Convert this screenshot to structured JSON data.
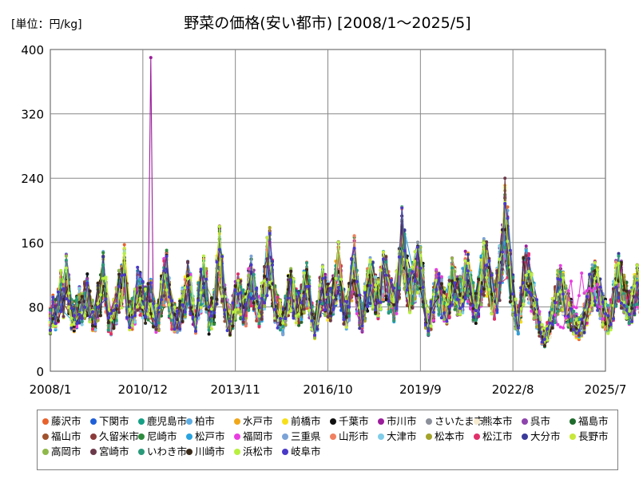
{
  "chart_data": {
    "type": "line",
    "title": "野菜の価格(安い都市) [2008/1～2025/5]",
    "unit_label": "[単位：円/kg]",
    "xlabel": "",
    "ylabel": "",
    "x_range": [
      2008.0,
      2025.5
    ],
    "ylim": [
      0,
      400
    ],
    "y_ticks": [
      0,
      80,
      160,
      240,
      320,
      400
    ],
    "x_ticks": [
      {
        "value": 2008.0,
        "label": "2008/1"
      },
      {
        "value": 2010.917,
        "label": "2010/12"
      },
      {
        "value": 2013.833,
        "label": "2013/11"
      },
      {
        "value": 2016.75,
        "label": "2016/10"
      },
      {
        "value": 2019.667,
        "label": "2019/9"
      },
      {
        "value": 2022.583,
        "label": "2022/8"
      },
      {
        "value": 2025.5,
        "label": "2025/7"
      }
    ],
    "grid": true,
    "legend_position": "bottom",
    "series": [
      {
        "name": "藤沢市",
        "color": "#e8622c"
      },
      {
        "name": "下関市",
        "color": "#1f5fd8"
      },
      {
        "name": "鹿児島市",
        "color": "#16a085"
      },
      {
        "name": "柏市",
        "color": "#5dade2"
      },
      {
        "name": "水戸市",
        "color": "#f0a81a"
      },
      {
        "name": "前橋市",
        "color": "#f7e01a"
      },
      {
        "name": "千葉市",
        "color": "#111111"
      },
      {
        "name": "市川市",
        "color": "#9b1d9b"
      },
      {
        "name": "さいたま市",
        "color": "#8a8f99"
      },
      {
        "name": "熊本市",
        "color": "#f7ecd0"
      },
      {
        "name": "呉市",
        "color": "#8e44ad"
      },
      {
        "name": "福島市",
        "color": "#1e6b2c"
      },
      {
        "name": "福山市",
        "color": "#a0522d"
      },
      {
        "name": "久留米市",
        "color": "#8b3a3a"
      },
      {
        "name": "尼崎市",
        "color": "#2e8b3e"
      },
      {
        "name": "松戸市",
        "color": "#29a3e0"
      },
      {
        "name": "福岡市",
        "color": "#e83ee0"
      },
      {
        "name": "三重県",
        "color": "#7ba3d6"
      },
      {
        "name": "山形市",
        "color": "#f08060"
      },
      {
        "name": "大津市",
        "color": "#7fcde8"
      },
      {
        "name": "松本市",
        "color": "#a3a32a"
      },
      {
        "name": "松江市",
        "color": "#e0306a"
      },
      {
        "name": "大分市",
        "color": "#3a3a9a"
      },
      {
        "name": "長野市",
        "color": "#c8e83a"
      },
      {
        "name": "高岡市",
        "color": "#8fb84a"
      },
      {
        "name": "宮崎市",
        "color": "#6b3a4a"
      },
      {
        "name": "いわき市",
        "color": "#2a9a7a"
      },
      {
        "name": "川崎市",
        "color": "#3a2a1a"
      },
      {
        "name": "浜松市",
        "color": "#b8f040"
      },
      {
        "name": "岐阜市",
        "color": "#4a3ac8"
      }
    ],
    "envelope_monthly": {
      "start": [
        2008,
        1
      ],
      "base": [
        62,
        74,
        70,
        84,
        98,
        92,
        114,
        96,
        72,
        68,
        74,
        82,
        78,
        88,
        96,
        84,
        70,
        64,
        86,
        94,
        118,
        92,
        66,
        60,
        70,
        82,
        100,
        108,
        126,
        90,
        68,
        72,
        80,
        102,
        96,
        88,
        82,
        86,
        90,
        76,
        66,
        70,
        94,
        110,
        118,
        92,
        70,
        66,
        62,
        70,
        84,
        92,
        110,
        96,
        74,
        62,
        88,
        100,
        112,
        102,
        64,
        72,
        80,
        112,
        142,
        118,
        84,
        70,
        60,
        74,
        88,
        96,
        90,
        80,
        78,
        100,
        112,
        100,
        82,
        76,
        86,
        104,
        130,
        142,
        110,
        84,
        74,
        70,
        62,
        74,
        94,
        100,
        90,
        80,
        78,
        84,
        98,
        106,
        92,
        70,
        56,
        70,
        92,
        104,
        96,
        88,
        82,
        96,
        108,
        126,
        104,
        80,
        72,
        86,
        110,
        132,
        98,
        74,
        66,
        86,
        100,
        112,
        106,
        96,
        90,
        104,
        120,
        114,
        100,
        92,
        84,
        98,
        124,
        160,
        140,
        112,
        100,
        108,
        118,
        132,
        128,
        106,
        72,
        58,
        70,
        86,
        100,
        96,
        92,
        84,
        80,
        92,
        110,
        102,
        96,
        94,
        100,
        118,
        116,
        98,
        86,
        78,
        92,
        112,
        130,
        128,
        112,
        98,
        88,
        100,
        122,
        148,
        190,
        160,
        118,
        96,
        72,
        64,
        84,
        112,
        126,
        116,
        98,
        86,
        70,
        58,
        46,
        42,
        48,
        58,
        72,
        82,
        98,
        104,
        98,
        84,
        76,
        70,
        62,
        56,
        54,
        58,
        66,
        80,
        96,
        104,
        110,
        102,
        90,
        76,
        70,
        64,
        70,
        88,
        110,
        118,
        108,
        96,
        88,
        80,
        82,
        94,
        106,
        98,
        86,
        76,
        62,
        56,
        52,
        60,
        76,
        84,
        90,
        86,
        82,
        80,
        84,
        92,
        98,
        104,
        108,
        128,
        140,
        132,
        114,
        96,
        82,
        76,
        74,
        82,
        90,
        96,
        92,
        84,
        72,
        66,
        70,
        80,
        92,
        108,
        126,
        118,
        98,
        82,
        72,
        70,
        76,
        84,
        92,
        96,
        104,
        118,
        110,
        96,
        84,
        74
      ],
      "spread_pct": 0.28,
      "spikes": [
        {
          "year": 2011,
          "month": 3,
          "series": "市川市",
          "value": 390
        }
      ]
    },
    "tail_series": {
      "name": "福岡市",
      "points": [
        [
          2023.917,
          70
        ],
        [
          2024.0,
          58
        ],
        [
          2024.083,
          55
        ],
        [
          2024.167,
          54
        ],
        [
          2024.25,
          66
        ],
        [
          2024.333,
          100
        ],
        [
          2024.417,
          112
        ],
        [
          2024.5,
          80
        ],
        [
          2024.583,
          79
        ],
        [
          2024.667,
          94
        ],
        [
          2024.75,
          122
        ],
        [
          2024.833,
          97
        ],
        [
          2024.917,
          100
        ],
        [
          2025.0,
          103
        ],
        [
          2025.083,
          100
        ],
        [
          2025.167,
          103
        ],
        [
          2025.25,
          108
        ],
        [
          2025.333,
          80
        ],
        [
          2025.417,
          65
        ]
      ]
    }
  }
}
